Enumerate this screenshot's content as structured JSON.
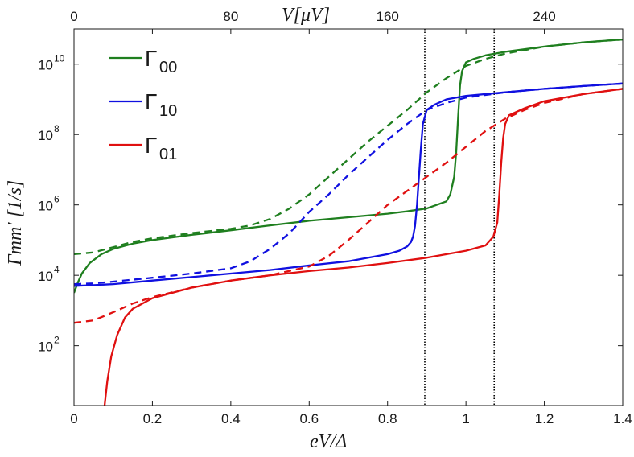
{
  "chart_data": {
    "type": "line",
    "xlabel": "eV/Δ",
    "ylabel": "Γmm′  [1/s]",
    "top_axis_label": "V[μV]",
    "xlim": [
      0,
      1.4
    ],
    "ylim_log10": [
      0.3,
      11
    ],
    "y_scale": "log",
    "x_ticks": [
      0,
      0.2,
      0.4,
      0.6,
      0.8,
      1,
      1.2,
      1.4
    ],
    "x_tick_labels": [
      "0",
      "0.2",
      "0.4",
      "0.6",
      "0.8",
      "1",
      "1.2",
      "1.4"
    ],
    "top_ticks": [
      {
        "x": 0,
        "label": "0"
      },
      {
        "x": 0.4,
        "label": "80"
      },
      {
        "x": 0.8,
        "label": "160"
      },
      {
        "x": 1.2,
        "label": "240"
      }
    ],
    "y_ticks_log10": [
      2,
      4,
      6,
      8,
      10
    ],
    "y_tick_labels": [
      {
        "base": "10",
        "exp": "2"
      },
      {
        "base": "10",
        "exp": "4"
      },
      {
        "base": "10",
        "exp": "6"
      },
      {
        "base": "10",
        "exp": "8"
      },
      {
        "base": "10",
        "exp": "10"
      }
    ],
    "vertical_lines": [
      0.895,
      1.072
    ],
    "legend": {
      "position": "top-left"
    },
    "series": [
      {
        "name": "Γ00",
        "base": "Γ",
        "sub": "00",
        "color": "#1f7f1f",
        "dash": false,
        "x": [
          0.0,
          0.01,
          0.02,
          0.04,
          0.07,
          0.1,
          0.15,
          0.2,
          0.3,
          0.4,
          0.5,
          0.6,
          0.7,
          0.8,
          0.85,
          0.9,
          0.95,
          0.96,
          0.97,
          0.975,
          0.98,
          0.985,
          0.99,
          1.0,
          1.02,
          1.05,
          1.1,
          1.2,
          1.3,
          1.4
        ],
        "log10y": [
          3.5,
          3.8,
          4.05,
          4.35,
          4.6,
          4.75,
          4.9,
          5.0,
          5.15,
          5.28,
          5.42,
          5.55,
          5.65,
          5.75,
          5.82,
          5.9,
          6.1,
          6.3,
          6.8,
          7.5,
          8.5,
          9.4,
          9.8,
          10.05,
          10.15,
          10.25,
          10.35,
          10.5,
          10.62,
          10.7
        ]
      },
      {
        "name": "Γ00 (dashed)",
        "base": "",
        "sub": "",
        "color": "#1f7f1f",
        "dash": true,
        "x": [
          0.0,
          0.05,
          0.1,
          0.15,
          0.2,
          0.3,
          0.4,
          0.45,
          0.5,
          0.55,
          0.6,
          0.65,
          0.7,
          0.75,
          0.8,
          0.85,
          0.9,
          0.95,
          1.0,
          1.05,
          1.1,
          1.2,
          1.3,
          1.4
        ],
        "log10y": [
          4.6,
          4.65,
          4.8,
          4.95,
          5.05,
          5.2,
          5.32,
          5.42,
          5.6,
          5.9,
          6.3,
          6.8,
          7.3,
          7.8,
          8.25,
          8.7,
          9.2,
          9.6,
          9.95,
          10.15,
          10.3,
          10.5,
          10.62,
          10.7
        ]
      },
      {
        "name": "Γ10",
        "base": "Γ",
        "sub": "10",
        "color": "#1010e0",
        "dash": false,
        "x": [
          0.0,
          0.05,
          0.1,
          0.2,
          0.3,
          0.4,
          0.5,
          0.6,
          0.7,
          0.8,
          0.83,
          0.85,
          0.86,
          0.865,
          0.87,
          0.875,
          0.88,
          0.885,
          0.89,
          0.9,
          0.92,
          0.95,
          1.0,
          1.1,
          1.2,
          1.3,
          1.4
        ],
        "log10y": [
          3.7,
          3.72,
          3.75,
          3.85,
          3.95,
          4.05,
          4.15,
          4.28,
          4.4,
          4.6,
          4.7,
          4.82,
          4.95,
          5.1,
          5.4,
          6.0,
          6.8,
          7.6,
          8.3,
          8.7,
          8.85,
          9.0,
          9.1,
          9.2,
          9.3,
          9.38,
          9.45
        ]
      },
      {
        "name": "Γ10 (dashed)",
        "base": "",
        "sub": "",
        "color": "#1010e0",
        "dash": true,
        "x": [
          0.0,
          0.05,
          0.1,
          0.2,
          0.3,
          0.4,
          0.45,
          0.5,
          0.55,
          0.6,
          0.65,
          0.7,
          0.75,
          0.8,
          0.85,
          0.9,
          0.95,
          1.0,
          1.1,
          1.2,
          1.3,
          1.4
        ],
        "log10y": [
          3.75,
          3.77,
          3.82,
          3.93,
          4.05,
          4.2,
          4.4,
          4.75,
          5.2,
          5.8,
          6.3,
          6.85,
          7.35,
          7.85,
          8.3,
          8.7,
          8.9,
          9.05,
          9.2,
          9.3,
          9.38,
          9.45
        ]
      },
      {
        "name": "Γ01",
        "base": "Γ",
        "sub": "01",
        "color": "#e01010",
        "dash": false,
        "x": [
          0.078,
          0.085,
          0.095,
          0.11,
          0.13,
          0.15,
          0.2,
          0.3,
          0.4,
          0.5,
          0.6,
          0.7,
          0.8,
          0.9,
          1.0,
          1.05,
          1.07,
          1.08,
          1.085,
          1.09,
          1.095,
          1.1,
          1.11,
          1.15,
          1.2,
          1.3,
          1.4
        ],
        "log10y": [
          0.3,
          1.0,
          1.7,
          2.3,
          2.8,
          3.05,
          3.35,
          3.65,
          3.85,
          4.0,
          4.12,
          4.22,
          4.35,
          4.5,
          4.7,
          4.85,
          5.1,
          5.5,
          6.3,
          7.2,
          7.9,
          8.3,
          8.55,
          8.75,
          8.95,
          9.15,
          9.3
        ]
      },
      {
        "name": "Γ01 (dashed)",
        "base": "",
        "sub": "",
        "color": "#e01010",
        "dash": true,
        "x": [
          0.0,
          0.05,
          0.1,
          0.15,
          0.2,
          0.3,
          0.4,
          0.5,
          0.6,
          0.65,
          0.7,
          0.75,
          0.8,
          0.85,
          0.9,
          0.95,
          1.0,
          1.05,
          1.1,
          1.15,
          1.2,
          1.3,
          1.4
        ],
        "log10y": [
          2.65,
          2.72,
          2.95,
          3.2,
          3.38,
          3.65,
          3.85,
          4.0,
          4.25,
          4.55,
          5.0,
          5.5,
          6.0,
          6.4,
          6.8,
          7.2,
          7.65,
          8.1,
          8.45,
          8.7,
          8.9,
          9.15,
          9.3
        ]
      }
    ]
  }
}
